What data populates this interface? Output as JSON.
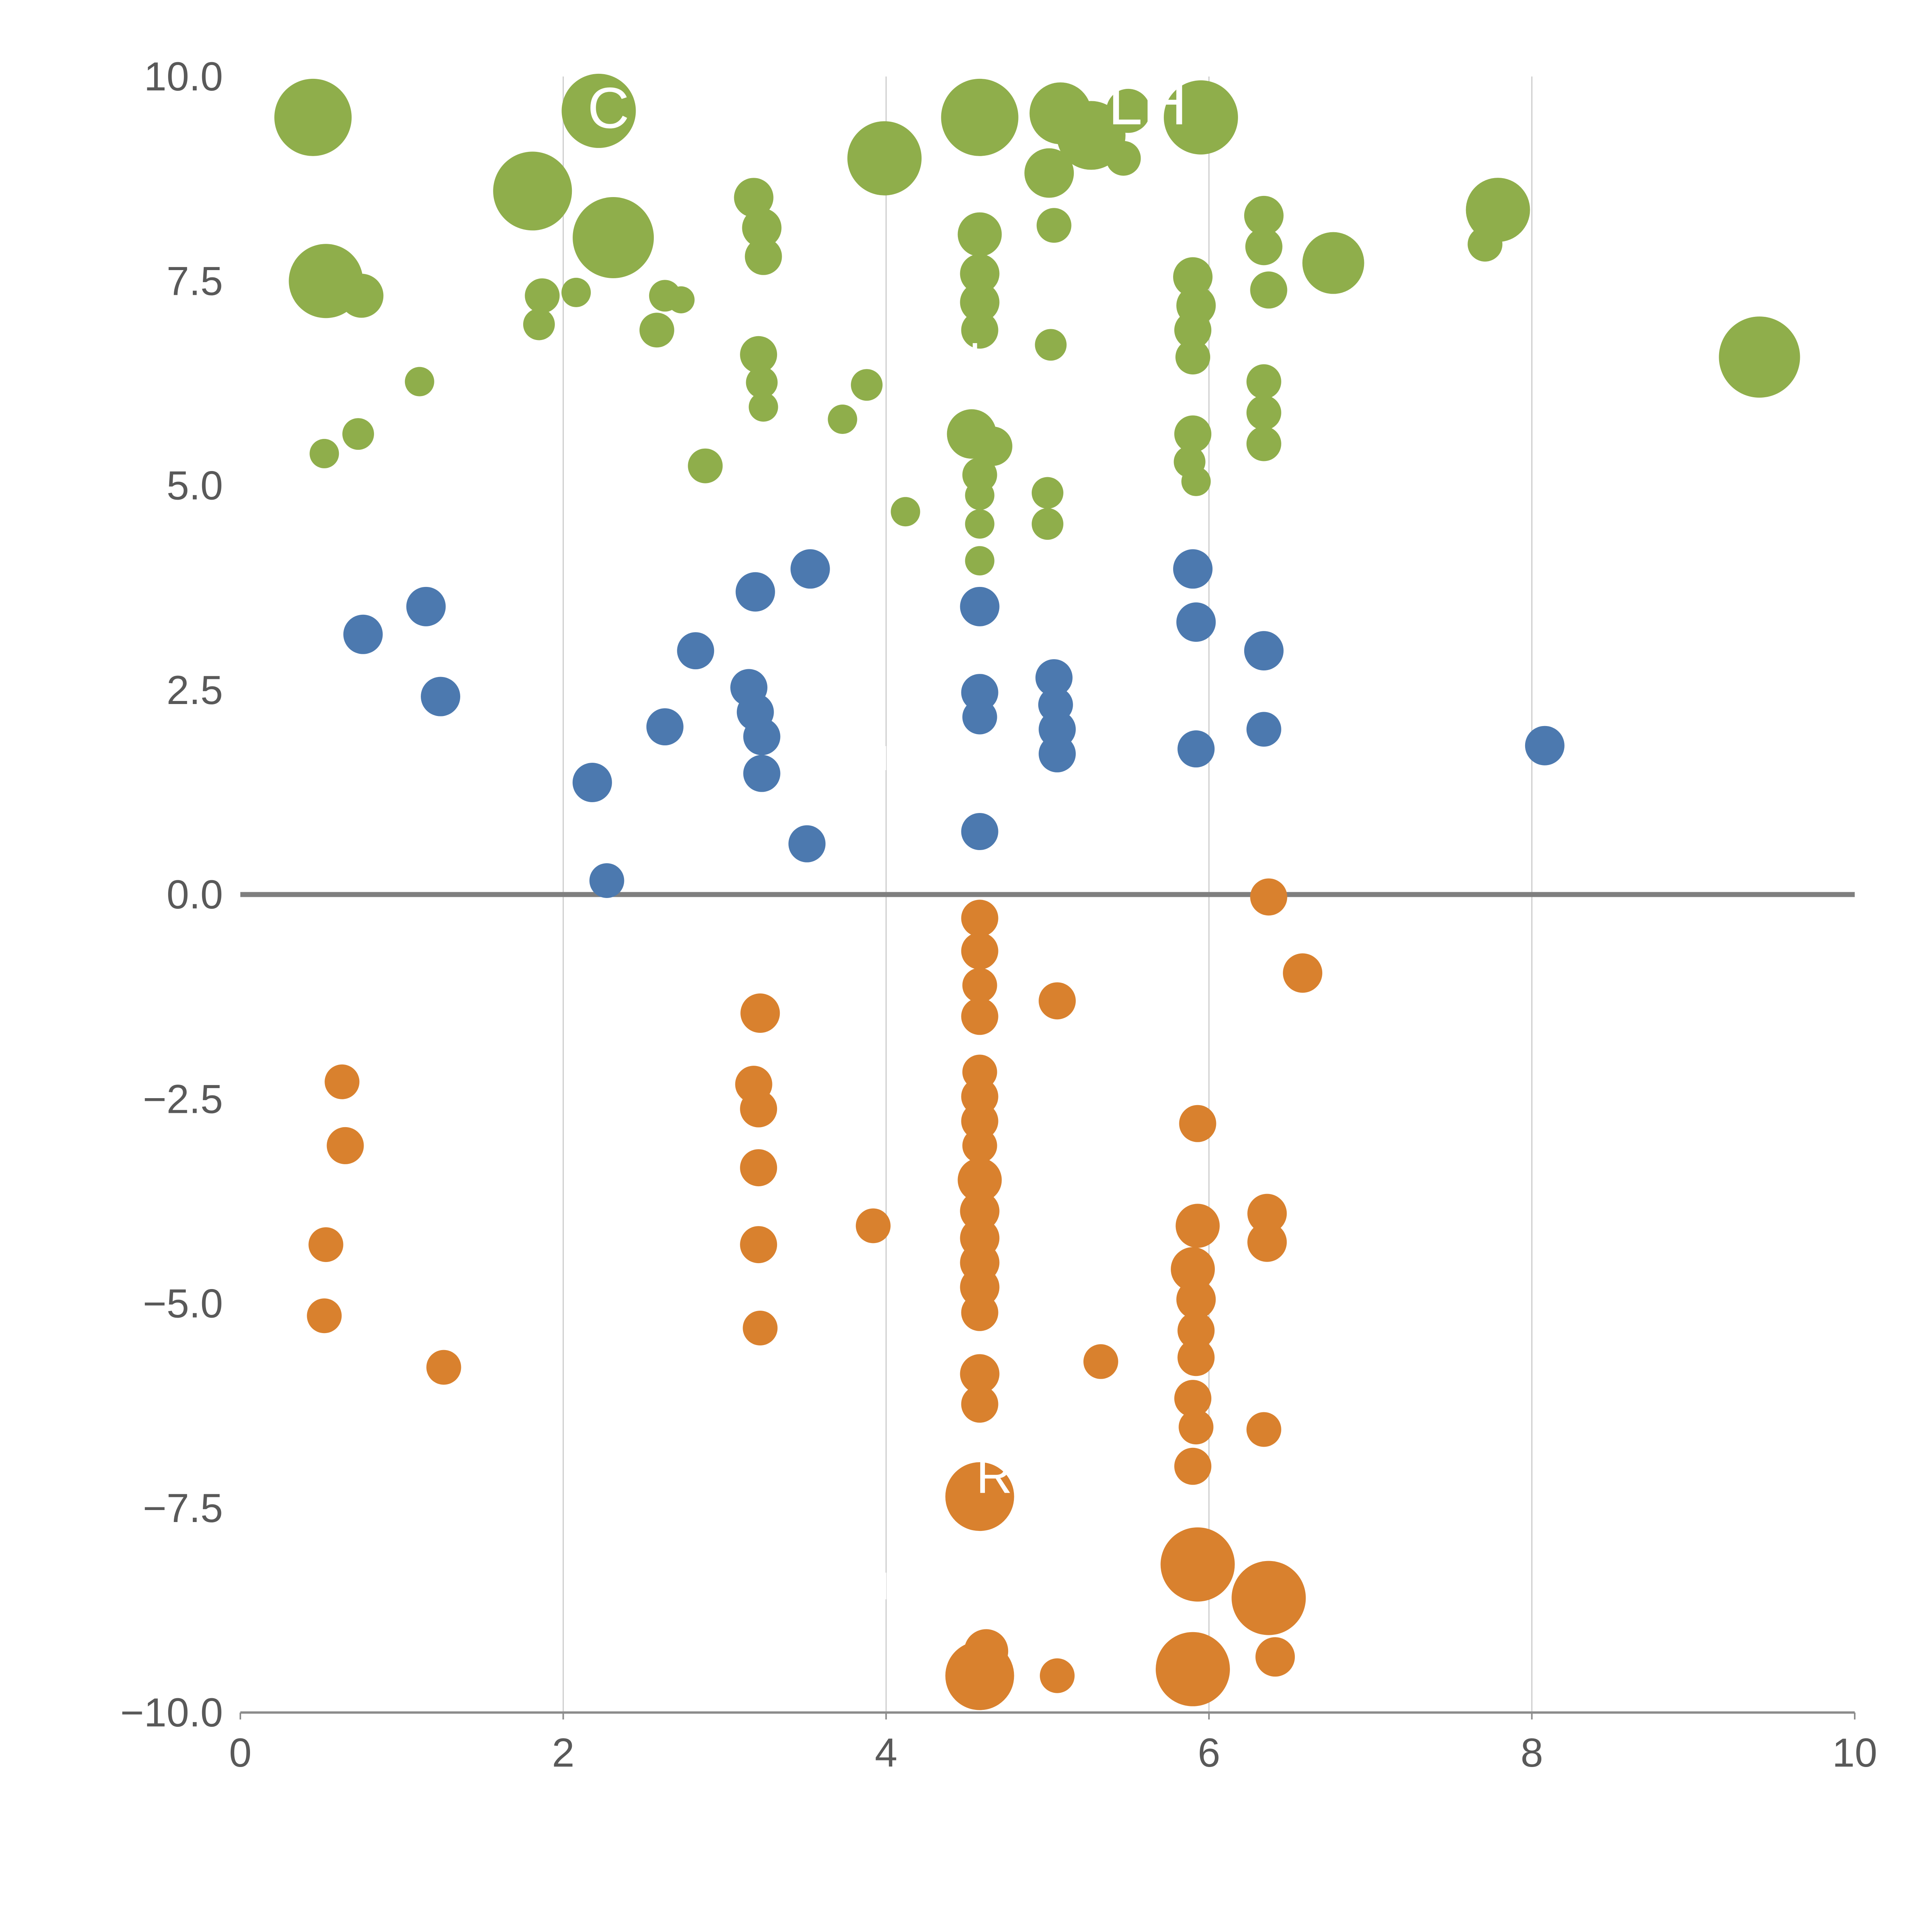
{
  "chart_data": {
    "type": "scatter",
    "title": "",
    "xlabel": "",
    "ylabel": "",
    "xlim": [
      0,
      10
    ],
    "ylim": [
      -10,
      10
    ],
    "x_ticks": [
      0,
      2,
      4,
      6,
      8,
      10
    ],
    "x_tick_labels": [
      "0",
      "2",
      "4",
      "6",
      "8",
      "10"
    ],
    "y_ticks": [
      10.0,
      7.5,
      5.0,
      2.5,
      0.0,
      -2.5,
      -5.0,
      -7.5,
      -10.0
    ],
    "y_tick_labels": [
      "10.0",
      "7.5",
      "5.0",
      "2.5",
      "0.0",
      "−2.5",
      "−5.0",
      "−7.5",
      "−10.0"
    ],
    "grid_x": [
      2,
      4,
      6,
      8
    ],
    "grid_on": true,
    "zero_line": true,
    "legend": "none",
    "colors": {
      "grid": "#cccccc",
      "zero_line": "#7f7f7f",
      "axis_line": "#8c8c8c",
      "tick_text": "#595959",
      "annotation_text": "#ffffff"
    },
    "series": [
      {
        "name": "green",
        "color": "#8fae4b",
        "points": [
          [
            0.45,
            9.5,
            100
          ],
          [
            2.22,
            9.58,
            96
          ],
          [
            4.58,
            9.5,
            100
          ],
          [
            5.08,
            9.55,
            80
          ],
          [
            5.27,
            9.28,
            89
          ],
          [
            5.5,
            9.58,
            57
          ],
          [
            5.95,
            9.5,
            96
          ],
          [
            1.81,
            8.6,
            102
          ],
          [
            3.99,
            9.0,
            96
          ],
          [
            5.01,
            8.82,
            64
          ],
          [
            5.47,
            9.0,
            45
          ],
          [
            2.31,
            8.03,
            105
          ],
          [
            3.18,
            8.52,
            51
          ],
          [
            3.23,
            8.15,
            51
          ],
          [
            3.24,
            7.8,
            48
          ],
          [
            4.58,
            8.07,
            57
          ],
          [
            5.04,
            8.18,
            45
          ],
          [
            6.34,
            8.3,
            51
          ],
          [
            6.34,
            7.92,
            48
          ],
          [
            6.77,
            7.72,
            80
          ],
          [
            7.71,
            7.95,
            45
          ],
          [
            7.79,
            8.37,
            83
          ],
          [
            0.53,
            7.5,
            96
          ],
          [
            0.75,
            7.32,
            57
          ],
          [
            4.58,
            7.59,
            51
          ],
          [
            4.58,
            7.24,
            51
          ],
          [
            5.9,
            7.55,
            51
          ],
          [
            5.92,
            7.2,
            51
          ],
          [
            6.37,
            7.39,
            48
          ],
          [
            1.87,
            7.32,
            45
          ],
          [
            1.85,
            6.97,
            41
          ],
          [
            2.08,
            7.36,
            38
          ],
          [
            2.63,
            7.32,
            41
          ],
          [
            2.58,
            6.9,
            45
          ],
          [
            2.73,
            7.27,
            35
          ],
          [
            4.58,
            6.9,
            48
          ],
          [
            5.9,
            6.9,
            48
          ],
          [
            5.9,
            6.57,
            45
          ],
          [
            9.41,
            6.57,
            105
          ],
          [
            3.21,
            6.6,
            48
          ],
          [
            3.23,
            6.26,
            41
          ],
          [
            3.24,
            5.96,
            38
          ],
          [
            5.02,
            6.72,
            41
          ],
          [
            1.11,
            6.27,
            38
          ],
          [
            6.34,
            6.27,
            45
          ],
          [
            6.34,
            5.89,
            45
          ],
          [
            6.34,
            5.51,
            45
          ],
          [
            3.73,
            5.81,
            38
          ],
          [
            3.88,
            6.23,
            41
          ],
          [
            0.73,
            5.63,
            41
          ],
          [
            0.52,
            5.39,
            38
          ],
          [
            4.53,
            5.63,
            64
          ],
          [
            4.66,
            5.48,
            51
          ],
          [
            4.58,
            5.13,
            45
          ],
          [
            5.9,
            5.63,
            48
          ],
          [
            5.88,
            5.29,
            41
          ],
          [
            5.92,
            5.05,
            38
          ],
          [
            2.88,
            5.24,
            45
          ],
          [
            4.12,
            4.68,
            38
          ],
          [
            4.58,
            4.88,
            38
          ],
          [
            5.0,
            4.91,
            41
          ],
          [
            5.0,
            4.53,
            41
          ],
          [
            4.58,
            4.53,
            38
          ],
          [
            4.58,
            4.08,
            38
          ]
        ]
      },
      {
        "name": "blue",
        "color": "#4c79af",
        "points": [
          [
            0.76,
            3.18,
            51
          ],
          [
            1.15,
            3.52,
            51
          ],
          [
            1.24,
            2.42,
            51
          ],
          [
            2.18,
            1.37,
            51
          ],
          [
            2.27,
            0.17,
            45
          ],
          [
            2.63,
            2.05,
            48
          ],
          [
            2.82,
            2.98,
            48
          ],
          [
            3.19,
            3.7,
            51
          ],
          [
            3.15,
            2.53,
            48
          ],
          [
            3.19,
            2.23,
            48
          ],
          [
            3.23,
            1.93,
            48
          ],
          [
            3.23,
            1.48,
            48
          ],
          [
            3.53,
            3.98,
            51
          ],
          [
            3.51,
            0.62,
            48
          ],
          [
            4.58,
            3.52,
            51
          ],
          [
            4.58,
            2.47,
            48
          ],
          [
            4.58,
            2.17,
            45
          ],
          [
            4.58,
            0.77,
            48
          ],
          [
            5.04,
            2.65,
            48
          ],
          [
            5.05,
            2.32,
            45
          ],
          [
            5.06,
            2.02,
            48
          ],
          [
            5.06,
            1.72,
            48
          ],
          [
            5.9,
            3.98,
            51
          ],
          [
            5.92,
            3.33,
            51
          ],
          [
            5.92,
            1.78,
            48
          ],
          [
            6.34,
            2.98,
            51
          ],
          [
            6.34,
            2.02,
            45
          ],
          [
            8.08,
            1.82,
            51
          ]
        ]
      },
      {
        "name": "orange",
        "color": "#d9812e",
        "points": [
          [
            6.37,
            -0.03,
            48
          ],
          [
            4.58,
            -0.29,
            48
          ],
          [
            4.58,
            -0.69,
            48
          ],
          [
            6.58,
            -0.96,
            51
          ],
          [
            4.58,
            -1.11,
            45
          ],
          [
            4.58,
            -1.49,
            48
          ],
          [
            5.06,
            -1.3,
            48
          ],
          [
            3.22,
            -1.45,
            51
          ],
          [
            0.63,
            -2.29,
            45
          ],
          [
            0.65,
            -3.07,
            48
          ],
          [
            3.18,
            -2.32,
            48
          ],
          [
            3.21,
            -2.62,
            48
          ],
          [
            4.58,
            -2.17,
            45
          ],
          [
            4.58,
            -2.47,
            48
          ],
          [
            4.58,
            -2.77,
            48
          ],
          [
            4.58,
            -3.07,
            45
          ],
          [
            5.93,
            -2.8,
            48
          ],
          [
            3.21,
            -3.34,
            48
          ],
          [
            4.58,
            -3.49,
            57
          ],
          [
            4.58,
            -3.87,
            51
          ],
          [
            4.58,
            -4.2,
            51
          ],
          [
            4.58,
            -4.5,
            51
          ],
          [
            4.58,
            -4.8,
            51
          ],
          [
            4.58,
            -5.11,
            48
          ],
          [
            3.92,
            -4.05,
            45
          ],
          [
            5.93,
            -4.05,
            57
          ],
          [
            6.36,
            -3.9,
            51
          ],
          [
            6.36,
            -4.25,
            51
          ],
          [
            0.53,
            -4.28,
            45
          ],
          [
            0.52,
            -5.15,
            45
          ],
          [
            3.21,
            -4.28,
            48
          ],
          [
            5.9,
            -4.58,
            57
          ],
          [
            5.92,
            -4.95,
            51
          ],
          [
            3.22,
            -5.3,
            45
          ],
          [
            5.92,
            -5.33,
            48
          ],
          [
            5.92,
            -5.66,
            48
          ],
          [
            1.26,
            -5.78,
            45
          ],
          [
            5.33,
            -5.71,
            45
          ],
          [
            4.58,
            -5.86,
            51
          ],
          [
            4.58,
            -6.23,
            48
          ],
          [
            5.9,
            -6.16,
            48
          ],
          [
            5.92,
            -6.51,
            45
          ],
          [
            6.34,
            -6.54,
            45
          ],
          [
            5.9,
            -6.99,
            48
          ],
          [
            4.58,
            -7.36,
            89
          ],
          [
            5.93,
            -8.19,
            96
          ],
          [
            6.37,
            -8.6,
            96
          ],
          [
            4.62,
            -9.25,
            57
          ],
          [
            4.58,
            -9.55,
            89
          ],
          [
            5.06,
            -9.55,
            45
          ],
          [
            5.9,
            -9.47,
            96
          ],
          [
            6.41,
            -9.32,
            51
          ]
        ]
      }
    ],
    "annotations": [
      {
        "text": "C",
        "x": 2.28,
        "y": 9.62,
        "size": 150
      },
      {
        "text": "LH",
        "x": 5.62,
        "y": 9.68,
        "size": 160
      },
      {
        "text": "I",
        "x": 4.55,
        "y": 6.55,
        "size": 120
      },
      {
        "text": "R",
        "x": 4.67,
        "y": -7.1,
        "size": 130
      },
      {
        "text": "I",
        "x": 3.99,
        "y": 1.67,
        "size": 90
      },
      {
        "text": "I",
        "x": 3.99,
        "y": -8.45,
        "size": 100
      }
    ]
  }
}
